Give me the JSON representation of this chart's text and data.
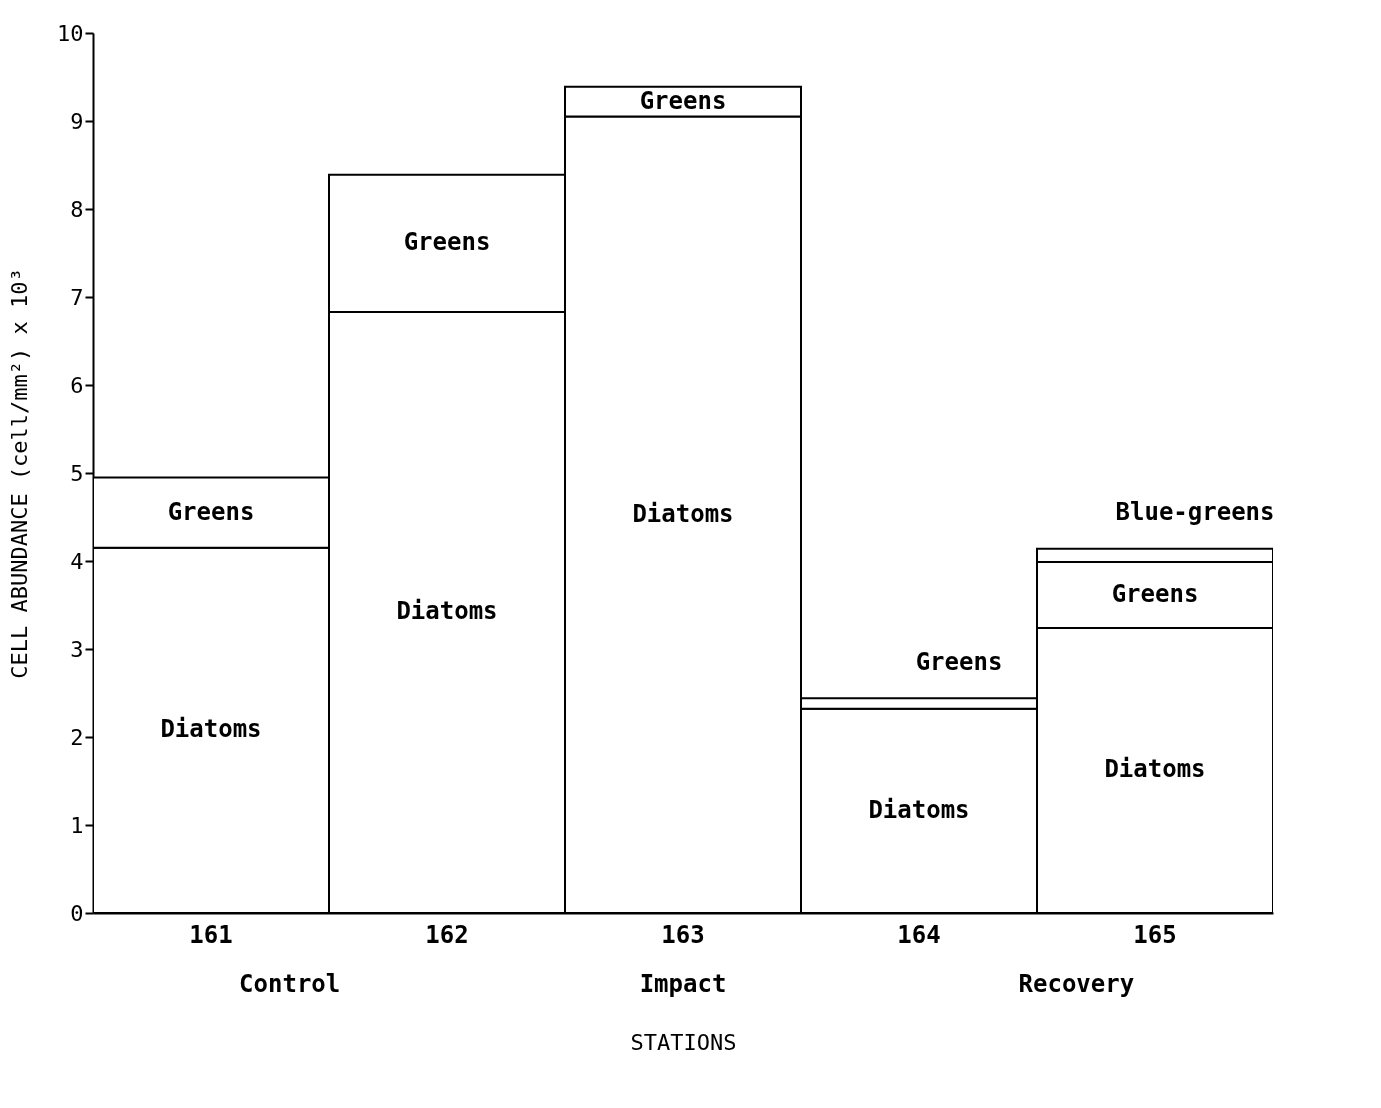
{
  "chart_data": {
    "type": "bar",
    "stacked": true,
    "xlabel": "STATIONS",
    "ylabel": "CELL ABUNDANCE (cell/mm²)  x 10³",
    "categories": [
      "161",
      "162",
      "163",
      "164",
      "165"
    ],
    "series": [
      {
        "name": "Diatoms",
        "color": "#ffffff",
        "values": [
          4.15,
          6.83,
          9.05,
          2.32,
          3.24
        ]
      },
      {
        "name": "Greens",
        "color": "#ffffff",
        "values": [
          0.8,
          1.56,
          0.34,
          0.12,
          0.75
        ]
      },
      {
        "name": "Blue-greens",
        "color": "#ffffff",
        "values": [
          null,
          null,
          null,
          null,
          0.15
        ]
      }
    ],
    "ylim": [
      0,
      10
    ],
    "yticks": [
      0,
      1,
      2,
      3,
      4,
      5,
      6,
      7,
      8,
      9,
      10
    ],
    "grid": false,
    "legend": false,
    "annotations": [
      "Control",
      "Impact",
      "Recovery"
    ]
  }
}
